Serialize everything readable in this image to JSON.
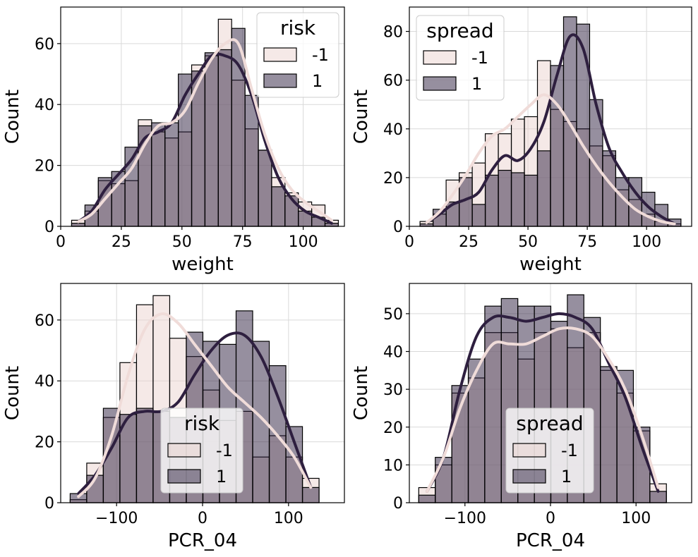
{
  "colors": {
    "neg": "#f0dcd9",
    "pos": "#2e1f3f",
    "neg_bar": "rgba(236,212,208,0.5)",
    "pos_bar": "rgba(46,31,63,0.5)",
    "grid": "#d9d9d9"
  },
  "chart_data": [
    {
      "type": "histogram",
      "xlabel": "weight",
      "ylabel": "Count",
      "xlim": [
        0,
        117
      ],
      "ylim": [
        0,
        72
      ],
      "xticks": [
        0,
        25,
        50,
        75,
        100
      ],
      "yticks": [
        0,
        20,
        40,
        60
      ],
      "bins": [
        4.5,
        10,
        15.5,
        21,
        26.5,
        32,
        37.5,
        43,
        48.5,
        54,
        59.5,
        65,
        70.5,
        76,
        81.5,
        87,
        92.5,
        98,
        103.5,
        109,
        114.5
      ],
      "legend": {
        "title": "risk",
        "placement": "top-right"
      },
      "series": [
        {
          "name": "-1",
          "counts": [
            2,
            5,
            15,
            14,
            15,
            35,
            31,
            29,
            31,
            53,
            56,
            68,
            48,
            32,
            25,
            16,
            11,
            8,
            7,
            2
          ],
          "kde": [
            1.5,
            4,
            9,
            14,
            19,
            27,
            33,
            34,
            38,
            47,
            55,
            60,
            60,
            45,
            30,
            19,
            12,
            8,
            5,
            2
          ]
        },
        {
          "name": "1",
          "counts": [
            1,
            7,
            16,
            18,
            26,
            33,
            34,
            34,
            50,
            51,
            57,
            58,
            65,
            43,
            25,
            13,
            10,
            5,
            3,
            1
          ],
          "kde": [
            1.5,
            5,
            12,
            17,
            22,
            29,
            31,
            34,
            43,
            50,
            56,
            56,
            53,
            43,
            28,
            16,
            9,
            5,
            3,
            1
          ]
        }
      ]
    },
    {
      "type": "histogram",
      "xlabel": "weight",
      "ylabel": "Count",
      "xlim": [
        0,
        119
      ],
      "ylim": [
        0,
        90
      ],
      "xticks": [
        0,
        25,
        50,
        75,
        100
      ],
      "yticks": [
        0,
        20,
        40,
        60,
        80
      ],
      "bins": [
        4.5,
        10,
        15.5,
        21,
        26.5,
        32,
        37.5,
        43,
        48.5,
        54,
        59.5,
        65,
        70.5,
        76,
        81.5,
        87,
        92.5,
        98,
        103.5,
        109,
        114.5
      ],
      "legend": {
        "title": "spread",
        "placement": "top-left"
      },
      "series": [
        {
          "name": "-1",
          "counts": [
            2,
            5,
            19,
            22,
            26,
            38,
            38,
            44,
            45,
            68,
            48,
            43,
            40,
            33,
            29,
            15,
            11,
            5,
            2,
            1
          ],
          "kde": [
            1.5,
            6,
            13,
            21,
            30,
            37,
            40,
            45,
            50,
            54,
            50,
            42,
            33,
            25,
            18,
            12,
            7,
            4,
            2,
            1
          ]
        },
        {
          "name": "1",
          "counts": [
            1,
            7,
            10,
            20,
            9,
            21,
            23,
            22,
            21,
            31,
            66,
            86,
            83,
            52,
            31,
            20,
            20,
            14,
            9,
            3
          ],
          "kde": [
            1.5,
            5,
            9,
            11,
            14,
            23,
            29,
            27,
            32,
            43,
            62,
            78,
            73,
            50,
            32,
            22,
            14,
            8,
            4,
            1
          ]
        }
      ]
    },
    {
      "type": "histogram",
      "xlabel": "PCR_04",
      "ylabel": "Count",
      "xlim": [
        -165,
        165
      ],
      "ylim": [
        0,
        72
      ],
      "xticks": [
        -100,
        0,
        100
      ],
      "yticks": [
        0,
        20,
        40,
        60
      ],
      "bins": [
        -154,
        -134.7,
        -115.4,
        -96.1,
        -76.8,
        -57.5,
        -38.2,
        -18.9,
        0.4,
        19.7,
        39,
        58.3,
        77.6,
        96.9,
        116.2,
        135.5
      ],
      "legend": {
        "title": "risk",
        "placement": "bottom-center"
      },
      "series": [
        {
          "name": "-1",
          "counts": [
            1,
            13,
            28,
            46,
            65,
            68,
            54,
            48,
            37,
            27,
            30,
            15,
            22,
            15,
            8
          ],
          "kde": [
            2,
            8,
            22,
            42,
            57,
            62,
            59,
            52,
            45,
            38,
            33,
            28,
            22,
            15,
            5
          ]
        },
        {
          "name": "1",
          "counts": [
            3,
            9,
            31,
            29,
            31,
            30,
            28,
            56,
            53,
            52,
            63,
            53,
            45,
            25,
            5
          ],
          "kde": [
            3,
            9,
            18,
            28,
            30,
            30,
            33,
            42,
            50,
            55,
            55,
            48,
            35,
            20,
            5
          ]
        }
      ]
    },
    {
      "type": "histogram",
      "xlabel": "PCR_04",
      "ylabel": "Count",
      "xlim": [
        -165,
        165
      ],
      "ylim": [
        0,
        58
      ],
      "xticks": [
        -100,
        0,
        100
      ],
      "yticks": [
        0,
        10,
        20,
        30,
        40,
        50
      ],
      "bins": [
        -154,
        -134.7,
        -115.4,
        -96.1,
        -76.8,
        -57.5,
        -38.2,
        -18.9,
        0.4,
        19.7,
        39,
        58.3,
        77.6,
        96.9,
        116.2,
        135.5
      ],
      "legend": {
        "title": "spread",
        "placement": "bottom-center"
      },
      "series": [
        {
          "name": "-1",
          "counts": [
            4,
            10,
            29,
            33,
            45,
            45,
            38,
            45,
            46,
            41,
            45,
            35,
            29,
            19,
            5
          ],
          "kde": [
            3,
            12,
            25,
            35,
            42,
            42,
            42,
            44,
            46,
            46,
            44,
            38,
            30,
            18,
            4
          ]
        },
        {
          "name": "1",
          "counts": [
            2,
            12,
            31,
            38,
            52,
            54,
            52,
            52,
            48,
            55,
            49,
            36,
            35,
            20,
            3
          ],
          "kde": [
            3,
            12,
            30,
            44,
            49,
            49,
            48,
            49,
            50,
            49,
            46,
            37,
            28,
            15,
            3
          ]
        }
      ]
    }
  ]
}
